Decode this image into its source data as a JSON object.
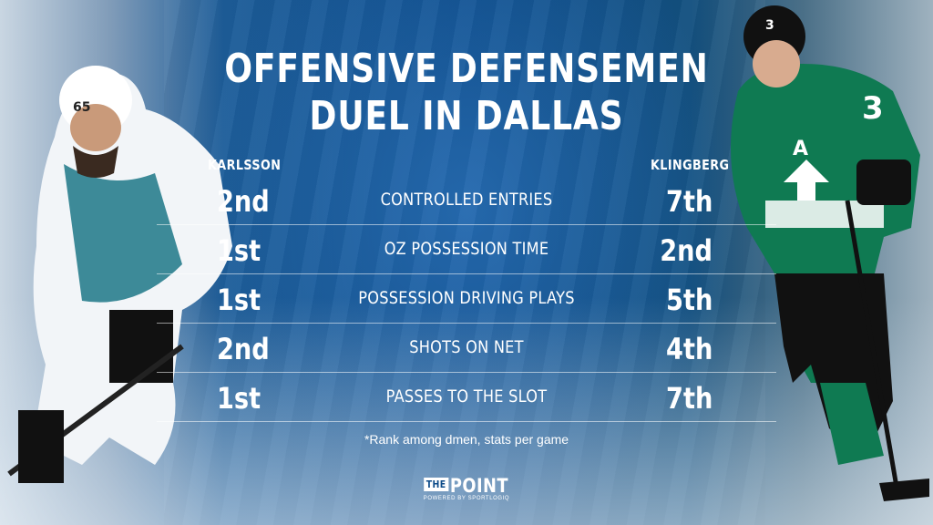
{
  "title": {
    "line1": "OFFENSIVE DEFENSEMEN",
    "line2": "DUEL IN DALLAS"
  },
  "players": {
    "left": "KARLSSON",
    "right": "KLINGBERG"
  },
  "rows": [
    {
      "stat": "CONTROLLED ENTRIES",
      "left_rank": "2nd",
      "right_rank": "7th"
    },
    {
      "stat": "OZ POSSESSION TIME",
      "left_rank": "1st",
      "right_rank": "2nd"
    },
    {
      "stat": "POSSESSION DRIVING PLAYS",
      "left_rank": "1st",
      "right_rank": "5th"
    },
    {
      "stat": "SHOTS ON NET",
      "left_rank": "2nd",
      "right_rank": "4th"
    },
    {
      "stat": "PASSES TO THE SLOT",
      "left_rank": "1st",
      "right_rank": "7th"
    }
  ],
  "footnote": "*Rank among dmen, stats per game",
  "logo": {
    "the": "THE",
    "point": "POINT",
    "sub": "POWERED BY SPORTLOGIQ"
  },
  "jerseys": {
    "left_number": "65",
    "right_number": "3",
    "right_captain": "A"
  },
  "colors": {
    "background": "#0c4a88",
    "sharks_teal": "#0f6f7f",
    "stars_green": "#0f7a52",
    "text": "#ffffff"
  }
}
